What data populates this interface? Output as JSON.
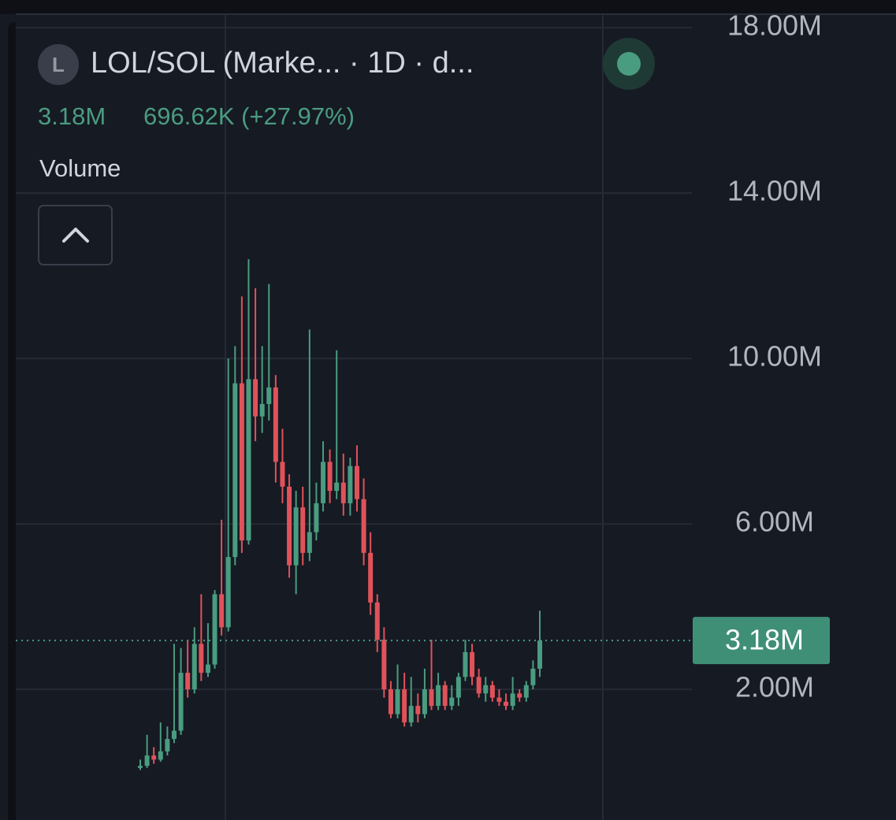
{
  "chart_data": {
    "type": "candlestick",
    "symbol_icon": "L",
    "title": "LOL/SOL (Marke... · 1D · d...",
    "last_value_text": "3.18M",
    "change_text": "696.62K (+27.97%)",
    "indicator": "Volume",
    "up_color": "#4a9c80",
    "down_color": "#e0525a",
    "ylim": [
      -1.16,
      18.67
    ],
    "yticks": [
      {
        "value": 2,
        "label": "2.00M"
      },
      {
        "value": 6,
        "label": "6.00M"
      },
      {
        "value": 10,
        "label": "10.00M"
      },
      {
        "value": 14,
        "label": "14.00M"
      },
      {
        "value": 18,
        "label": "18.00M"
      }
    ],
    "grid": true,
    "last_price": {
      "value": 3.18,
      "label": "3.18M"
    },
    "open": [
      0.1,
      0.15,
      0.4,
      0.3,
      0.5,
      0.8,
      1.0,
      2.4,
      2.0,
      3.1,
      2.4,
      2.6,
      4.3,
      3.5,
      5.2,
      9.4,
      5.6,
      9.5,
      8.6,
      8.9,
      9.3,
      7.5,
      6.9,
      5.0,
      6.4,
      5.3,
      5.8,
      6.5,
      7.5,
      6.8,
      7.0,
      6.5,
      7.4,
      6.6,
      5.3,
      4.1,
      3.2,
      2.0,
      1.4,
      2.0,
      1.2,
      1.6,
      1.4,
      2.0,
      1.6,
      2.1,
      1.6,
      1.8,
      2.3,
      2.9,
      2.3,
      1.9,
      2.1,
      1.8,
      1.7,
      1.6,
      1.9,
      1.8,
      2.1,
      2.5
    ],
    "high": [
      0.3,
      0.9,
      0.6,
      1.2,
      1.1,
      3.1,
      3.0,
      3.2,
      3.5,
      4.3,
      3.6,
      4.4,
      6.1,
      10.0,
      10.3,
      11.5,
      12.4,
      11.7,
      10.3,
      11.8,
      9.6,
      8.3,
      7.2,
      6.8,
      6.9,
      10.7,
      7.0,
      8.0,
      7.8,
      10.2,
      7.7,
      7.6,
      7.9,
      7.1,
      5.8,
      4.3,
      3.5,
      2.2,
      2.6,
      2.4,
      2.3,
      1.9,
      2.5,
      3.2,
      2.4,
      2.2,
      2.1,
      2.4,
      3.2,
      3.1,
      2.5,
      2.3,
      2.2,
      2.0,
      1.9,
      2.3,
      2.0,
      2.2,
      2.7,
      3.9
    ],
    "low": [
      0.05,
      0.1,
      0.2,
      0.25,
      0.4,
      0.7,
      0.9,
      1.8,
      1.9,
      2.2,
      2.3,
      2.5,
      3.3,
      3.4,
      5.0,
      5.3,
      5.5,
      8.0,
      8.2,
      8.5,
      7.0,
      6.5,
      4.7,
      4.3,
      5.0,
      5.1,
      5.6,
      6.3,
      6.5,
      6.6,
      6.2,
      6.2,
      6.3,
      5.0,
      3.8,
      2.9,
      1.8,
      1.3,
      1.3,
      1.1,
      1.1,
      1.2,
      1.3,
      1.5,
      1.5,
      1.5,
      1.5,
      1.6,
      2.2,
      2.1,
      1.8,
      1.7,
      1.7,
      1.6,
      1.5,
      1.5,
      1.7,
      1.7,
      2.0,
      2.3
    ],
    "close": [
      0.15,
      0.4,
      0.3,
      0.5,
      0.8,
      1.0,
      2.4,
      2.0,
      3.1,
      2.4,
      2.6,
      4.3,
      3.5,
      5.2,
      9.4,
      5.6,
      9.5,
      8.6,
      8.9,
      9.3,
      7.5,
      6.9,
      5.0,
      6.4,
      5.3,
      5.8,
      6.5,
      7.5,
      6.8,
      7.0,
      6.5,
      7.4,
      6.6,
      5.3,
      4.1,
      3.2,
      2.0,
      1.4,
      2.0,
      1.2,
      1.6,
      1.4,
      2.0,
      1.6,
      2.1,
      1.6,
      1.8,
      2.3,
      2.9,
      2.3,
      1.9,
      2.1,
      1.8,
      1.7,
      1.6,
      1.9,
      1.8,
      2.1,
      2.5,
      3.18
    ]
  }
}
